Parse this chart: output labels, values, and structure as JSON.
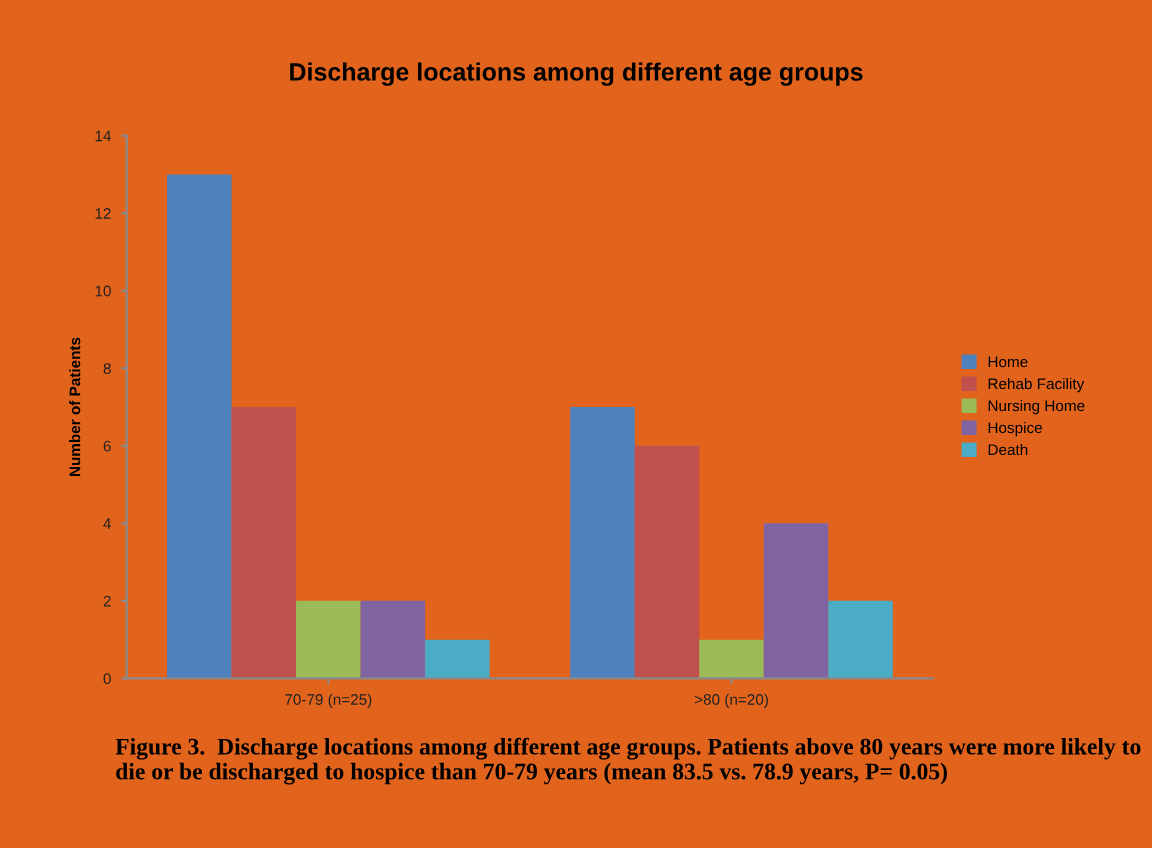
{
  "chart_data": {
    "type": "bar",
    "title": "Discharge locations among different age groups",
    "ylabel": "Number of Patients",
    "categories": [
      "70-79 (n=25)",
      ">80 (n=20)"
    ],
    "series": [
      {
        "name": "Home",
        "color": "#4f81bd",
        "values": [
          13,
          7
        ]
      },
      {
        "name": "Rehab Facility",
        "color": "#c0504d",
        "values": [
          7,
          6
        ]
      },
      {
        "name": "Nursing Home",
        "color": "#9bbb59",
        "values": [
          2,
          1
        ]
      },
      {
        "name": "Hospice",
        "color": "#8064a2",
        "values": [
          2,
          4
        ]
      },
      {
        "name": "Death",
        "color": "#4bacc6",
        "values": [
          1,
          2
        ]
      }
    ],
    "ylim": [
      0,
      14
    ],
    "yticks": [
      0,
      2,
      4,
      6,
      8,
      10,
      12,
      14
    ],
    "grid": false,
    "legend": "right",
    "annotations": [
      "Figure 3.  Discharge locations among different age groups. Patients above 80 years were more likely to die or be discharged to hospice than 70-79 years (mean 83.5 vs. 78.9 years, P= 0.05)"
    ]
  }
}
